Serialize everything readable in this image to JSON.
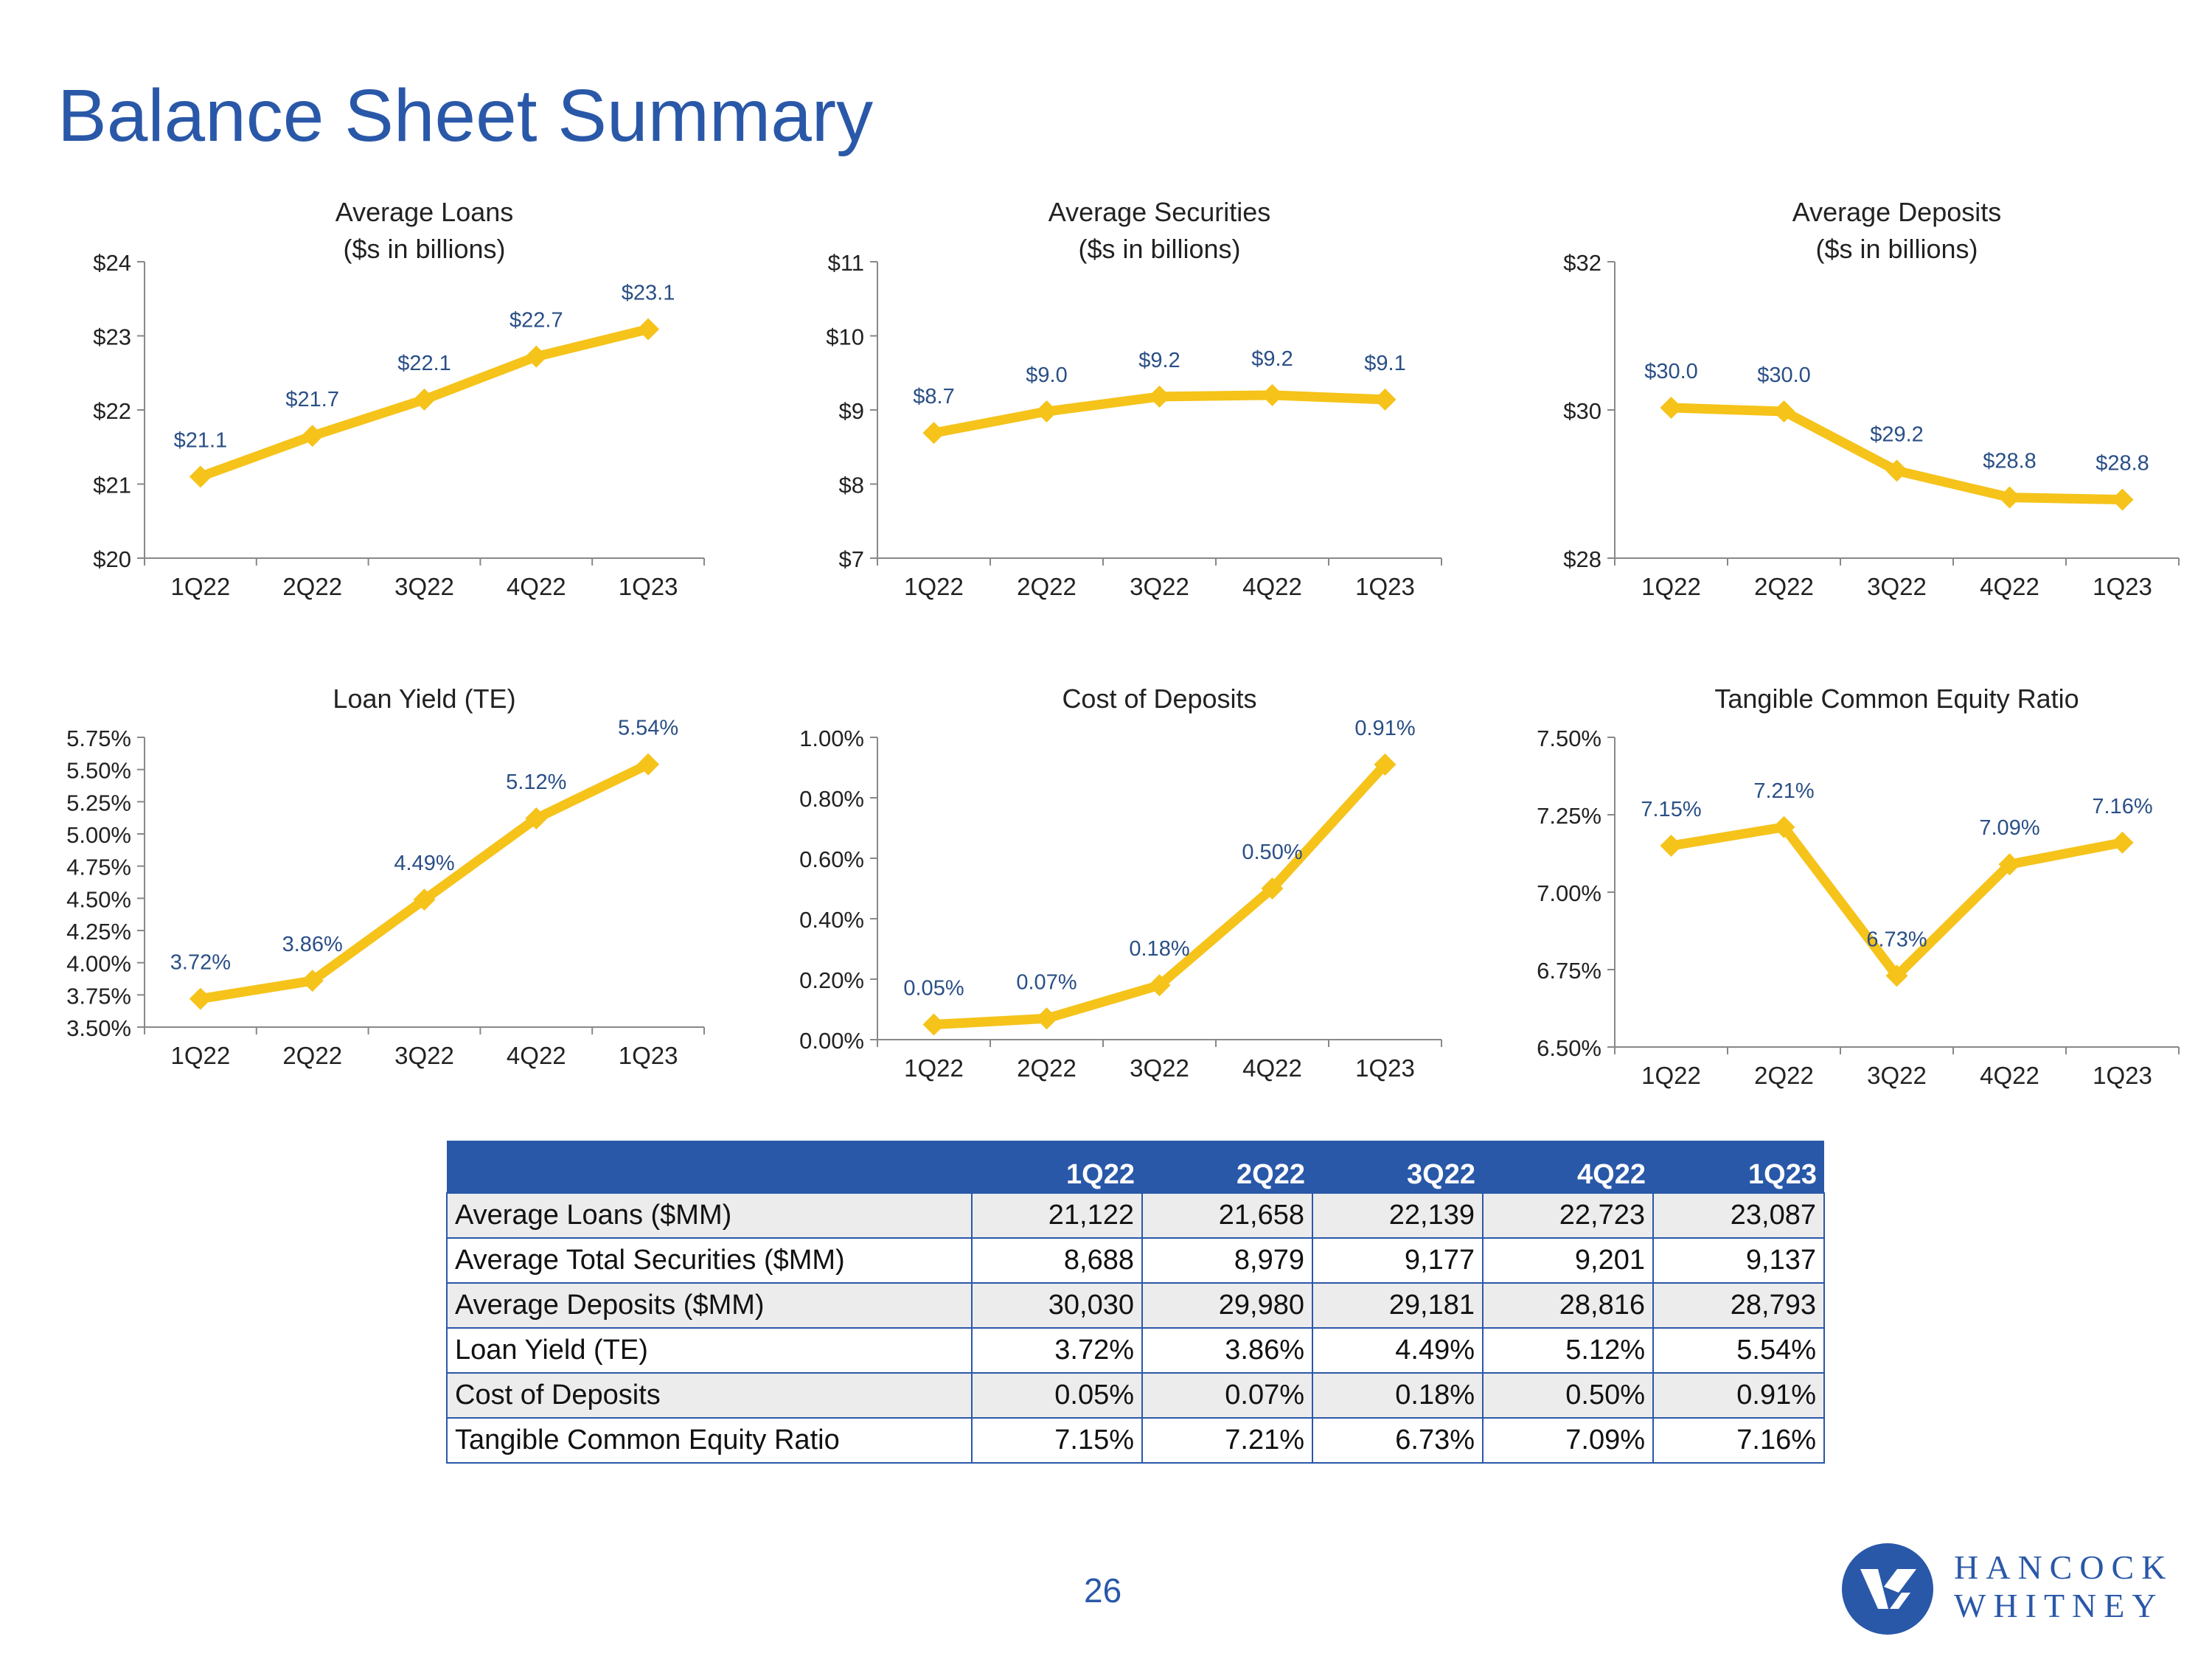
{
  "page": {
    "title": "Balance Sheet Summary",
    "page_number": "26"
  },
  "colors": {
    "line": "#f5c31a",
    "label": "#2a4f86",
    "title": "#2a58a8",
    "table_header": "#2a58a8"
  },
  "logo": {
    "line1": "HANCOCK",
    "line2": "WHITNEY",
    "icon": "hancock-whitney-logo-icon"
  },
  "chart_data": [
    {
      "type": "line",
      "title": "Average Loans",
      "subtitle": "($s in billions)",
      "categories": [
        "1Q22",
        "2Q22",
        "3Q22",
        "4Q22",
        "1Q23"
      ],
      "values": [
        21.1,
        21.65,
        22.14,
        22.72,
        23.09
      ],
      "data_labels": [
        "$21.1",
        "$21.7",
        "$22.1",
        "$22.7",
        "$23.1"
      ],
      "yticks": [
        "$20",
        "$21",
        "$22",
        "$23",
        "$24"
      ],
      "ylim": [
        20,
        24
      ]
    },
    {
      "type": "line",
      "title": "Average Securities",
      "subtitle": "($s in billions)",
      "categories": [
        "1Q22",
        "2Q22",
        "3Q22",
        "4Q22",
        "1Q23"
      ],
      "values": [
        8.69,
        8.98,
        9.18,
        9.2,
        9.14
      ],
      "data_labels": [
        "$8.7",
        "$9.0",
        "$9.2",
        "$9.2",
        "$9.1"
      ],
      "yticks": [
        "$7",
        "$8",
        "$9",
        "$10",
        "$11"
      ],
      "ylim": [
        7,
        11
      ]
    },
    {
      "type": "line",
      "title": "Average Deposits",
      "subtitle": "($s in billions)",
      "categories": [
        "1Q22",
        "2Q22",
        "3Q22",
        "4Q22",
        "1Q23"
      ],
      "values": [
        30.03,
        29.98,
        29.18,
        28.82,
        28.79
      ],
      "data_labels": [
        "$30.0",
        "$30.0",
        "$29.2",
        "$28.8",
        "$28.8"
      ],
      "yticks": [
        "$28",
        "$30",
        "$32"
      ],
      "ylim": [
        28,
        32
      ]
    },
    {
      "type": "line",
      "title": "Loan Yield (TE)",
      "subtitle": "",
      "categories": [
        "1Q22",
        "2Q22",
        "3Q22",
        "4Q22",
        "1Q23"
      ],
      "values": [
        3.72,
        3.86,
        4.49,
        5.12,
        5.54
      ],
      "data_labels": [
        "3.72%",
        "3.86%",
        "4.49%",
        "5.12%",
        "5.54%"
      ],
      "yticks": [
        "3.50%",
        "3.75%",
        "4.00%",
        "4.25%",
        "4.50%",
        "4.75%",
        "5.00%",
        "5.25%",
        "5.50%",
        "5.75%"
      ],
      "ylim": [
        3.5,
        5.75
      ]
    },
    {
      "type": "line",
      "title": "Cost of Deposits",
      "subtitle": "",
      "categories": [
        "1Q22",
        "2Q22",
        "3Q22",
        "4Q22",
        "1Q23"
      ],
      "values": [
        0.05,
        0.07,
        0.18,
        0.5,
        0.91
      ],
      "data_labels": [
        "0.05%",
        "0.07%",
        "0.18%",
        "0.50%",
        "0.91%"
      ],
      "yticks": [
        "0.00%",
        "0.20%",
        "0.40%",
        "0.60%",
        "0.80%",
        "1.00%"
      ],
      "ylim": [
        0,
        1.0
      ]
    },
    {
      "type": "line",
      "title": "Tangible Common Equity Ratio",
      "subtitle": "",
      "categories": [
        "1Q22",
        "2Q22",
        "3Q22",
        "4Q22",
        "1Q23"
      ],
      "values": [
        7.15,
        7.21,
        6.73,
        7.09,
        7.16
      ],
      "data_labels": [
        "7.15%",
        "7.21%",
        "6.73%",
        "7.09%",
        "7.16%"
      ],
      "yticks": [
        "6.50%",
        "6.75%",
        "7.00%",
        "7.25%",
        "7.50%"
      ],
      "ylim": [
        6.5,
        7.5
      ]
    }
  ],
  "table": {
    "headers": [
      "",
      "1Q22",
      "2Q22",
      "3Q22",
      "4Q22",
      "1Q23"
    ],
    "rows": [
      [
        "Average Loans ($MM)",
        "21,122",
        "21,658",
        "22,139",
        "22,723",
        "23,087"
      ],
      [
        "Average Total Securities ($MM)",
        "8,688",
        "8,979",
        "9,177",
        "9,201",
        "9,137"
      ],
      [
        "Average Deposits ($MM)",
        "30,030",
        "29,980",
        "29,181",
        "28,816",
        "28,793"
      ],
      [
        "Loan Yield (TE)",
        "3.72%",
        "3.86%",
        "4.49%",
        "5.12%",
        "5.54%"
      ],
      [
        "Cost of Deposits",
        "0.05%",
        "0.07%",
        "0.18%",
        "0.50%",
        "0.91%"
      ],
      [
        "Tangible Common Equity Ratio",
        "7.15%",
        "7.21%",
        "6.73%",
        "7.09%",
        "7.16%"
      ]
    ]
  }
}
